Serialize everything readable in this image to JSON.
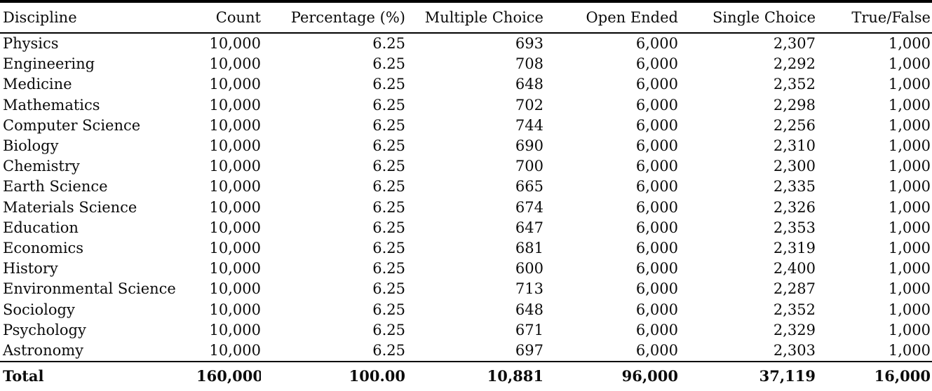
{
  "colors": {
    "background": "#ffffff",
    "text": "#0b0b0b",
    "rule": "#000000"
  },
  "table": {
    "columns": [
      "Discipline",
      "Count",
      "Percentage (%)",
      "Multiple Choice",
      "Open Ended",
      "Single Choice",
      "True/False"
    ],
    "rows": [
      [
        "Physics",
        "10,000",
        "6.25",
        "693",
        "6,000",
        "2,307",
        "1,000"
      ],
      [
        "Engineering",
        "10,000",
        "6.25",
        "708",
        "6,000",
        "2,292",
        "1,000"
      ],
      [
        "Medicine",
        "10,000",
        "6.25",
        "648",
        "6,000",
        "2,352",
        "1,000"
      ],
      [
        "Mathematics",
        "10,000",
        "6.25",
        "702",
        "6,000",
        "2,298",
        "1,000"
      ],
      [
        "Computer Science",
        "10,000",
        "6.25",
        "744",
        "6,000",
        "2,256",
        "1,000"
      ],
      [
        "Biology",
        "10,000",
        "6.25",
        "690",
        "6,000",
        "2,310",
        "1,000"
      ],
      [
        "Chemistry",
        "10,000",
        "6.25",
        "700",
        "6,000",
        "2,300",
        "1,000"
      ],
      [
        "Earth Science",
        "10,000",
        "6.25",
        "665",
        "6,000",
        "2,335",
        "1,000"
      ],
      [
        "Materials Science",
        "10,000",
        "6.25",
        "674",
        "6,000",
        "2,326",
        "1,000"
      ],
      [
        "Education",
        "10,000",
        "6.25",
        "647",
        "6,000",
        "2,353",
        "1,000"
      ],
      [
        "Economics",
        "10,000",
        "6.25",
        "681",
        "6,000",
        "2,319",
        "1,000"
      ],
      [
        "History",
        "10,000",
        "6.25",
        "600",
        "6,000",
        "2,400",
        "1,000"
      ],
      [
        "Environmental Science",
        "10,000",
        "6.25",
        "713",
        "6,000",
        "2,287",
        "1,000"
      ],
      [
        "Sociology",
        "10,000",
        "6.25",
        "648",
        "6,000",
        "2,352",
        "1,000"
      ],
      [
        "Psychology",
        "10,000",
        "6.25",
        "671",
        "6,000",
        "2,329",
        "1,000"
      ],
      [
        "Astronomy",
        "10,000",
        "6.25",
        "697",
        "6,000",
        "2,303",
        "1,000"
      ]
    ],
    "total_row": [
      "Total",
      "160,000",
      "100.00",
      "10,881",
      "96,000",
      "37,119",
      "16,000"
    ]
  }
}
